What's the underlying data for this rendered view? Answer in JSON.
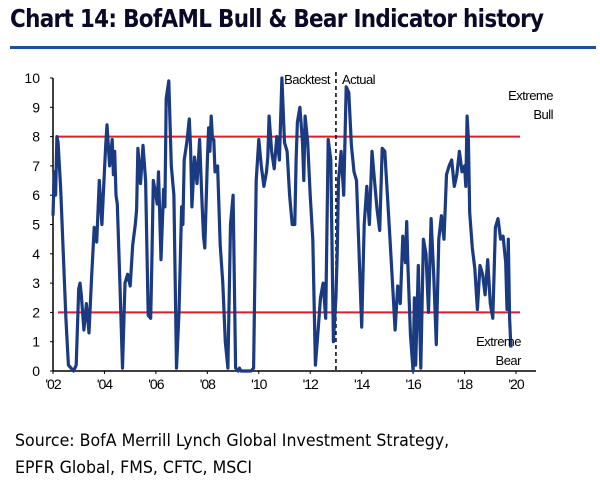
{
  "title": "Chart 14: BofAML Bull & Bear Indicator history",
  "source_lines": [
    "Source: BofA Merrill Lynch Global Investment Strategy,",
    "EPFR Global, FMS, CFTC, MSCI"
  ],
  "colors": {
    "series": "#1a3a82",
    "threshold": "#e01b2a",
    "title_rule": "#1f4e9a"
  },
  "chart_data": {
    "type": "line",
    "title": "Chart 14: BofAML Bull & Bear Indicator history",
    "xlabel": "",
    "ylabel": "",
    "xlim": [
      2002,
      2020
    ],
    "ylim": [
      0,
      10
    ],
    "grid": false,
    "x_tick_labels": [
      "'02",
      "'04",
      "'06",
      "'08",
      "'10",
      "'12",
      "'14",
      "'16",
      "'18",
      "'20"
    ],
    "x_ticks": [
      2002,
      2004,
      2006,
      2008,
      2010,
      2012,
      2014,
      2016,
      2018,
      2020
    ],
    "y_ticks": [
      0,
      1,
      2,
      3,
      4,
      5,
      6,
      7,
      8,
      9,
      10
    ],
    "y_tick_labels": [
      "0",
      "1",
      "2",
      "3",
      "4",
      "5",
      "6",
      "7",
      "8",
      "9",
      "10"
    ],
    "thresholds": [
      {
        "name": "Extreme Bull",
        "value": 8,
        "label_lines": [
          "Extreme",
          "Bull"
        ]
      },
      {
        "name": "Extreme Bear",
        "value": 2,
        "label_lines": [
          "Extreme",
          "Bear"
        ]
      }
    ],
    "divider": {
      "x": 2013.0,
      "left_label": "Backtest",
      "right_label": "Actual",
      "style": "dashed"
    },
    "series": [
      {
        "name": "BofAML Bull & Bear Indicator",
        "x": [
          2002.0,
          2002.05,
          2002.1,
          2002.15,
          2002.2,
          2002.3,
          2002.4,
          2002.5,
          2002.6,
          2002.7,
          2002.8,
          2002.9,
          2003.0,
          2003.05,
          2003.1,
          2003.2,
          2003.3,
          2003.4,
          2003.5,
          2003.6,
          2003.7,
          2003.8,
          2003.9,
          2004.0,
          2004.05,
          2004.1,
          2004.2,
          2004.3,
          2004.35,
          2004.4,
          2004.45,
          2004.5,
          2004.6,
          2004.7,
          2004.8,
          2004.9,
          2005.0,
          2005.1,
          2005.2,
          2005.25,
          2005.3,
          2005.35,
          2005.4,
          2005.5,
          2005.6,
          2005.7,
          2005.8,
          2005.85,
          2005.9,
          2006.0,
          2006.05,
          2006.1,
          2006.2,
          2006.3,
          2006.35,
          2006.4,
          2006.5,
          2006.6,
          2006.7,
          2006.8,
          2006.9,
          2007.0,
          2007.05,
          2007.1,
          2007.2,
          2007.3,
          2007.35,
          2007.4,
          2007.5,
          2007.6,
          2007.7,
          2007.8,
          2007.85,
          2007.9,
          2008.0,
          2008.05,
          2008.1,
          2008.15,
          2008.2,
          2008.25,
          2008.3,
          2008.4,
          2008.5,
          2008.6,
          2008.7,
          2008.8,
          2008.9,
          2009.0,
          2009.1,
          2009.2,
          2009.25,
          2009.3,
          2009.4,
          2009.5,
          2009.6,
          2009.7,
          2009.8,
          2009.9,
          2010.0,
          2010.1,
          2010.2,
          2010.3,
          2010.35,
          2010.4,
          2010.5,
          2010.6,
          2010.7,
          2010.8,
          2010.9,
          2011.0,
          2011.1,
          2011.2,
          2011.3,
          2011.4,
          2011.45,
          2011.5,
          2011.6,
          2011.7,
          2011.75,
          2011.8,
          2011.9,
          2012.0,
          2012.1,
          2012.2,
          2012.3,
          2012.4,
          2012.5,
          2012.6,
          2012.7,
          2012.8,
          2012.9,
          2013.0,
          2013.05,
          2013.1,
          2013.2,
          2013.3,
          2013.4,
          2013.5,
          2013.6,
          2013.7,
          2013.8,
          2013.9,
          2014.0,
          2014.1,
          2014.2,
          2014.3,
          2014.4,
          2014.5,
          2014.6,
          2014.7,
          2014.8,
          2014.9,
          2015.0,
          2015.1,
          2015.2,
          2015.3,
          2015.4,
          2015.5,
          2015.6,
          2015.7,
          2015.75,
          2015.8,
          2015.9,
          2016.0,
          2016.05,
          2016.1,
          2016.2,
          2016.3,
          2016.4,
          2016.5,
          2016.6,
          2016.7,
          2016.8,
          2016.9,
          2017.0,
          2017.1,
          2017.2,
          2017.3,
          2017.4,
          2017.5,
          2017.6,
          2017.7,
          2017.8,
          2017.9,
          2018.0,
          2018.05,
          2018.1,
          2018.15,
          2018.2,
          2018.3,
          2018.4,
          2018.5,
          2018.6,
          2018.7,
          2018.8,
          2018.9,
          2019.0,
          2019.1,
          2019.2,
          2019.3,
          2019.4,
          2019.5,
          2019.6,
          2019.65,
          2019.7,
          2019.75,
          2019.8
        ],
        "y": [
          5.3,
          6.8,
          6.0,
          8.0,
          7.8,
          6.2,
          4.0,
          1.8,
          0.2,
          0.1,
          0.0,
          0.2,
          2.8,
          3.0,
          2.6,
          1.4,
          2.3,
          1.3,
          3.2,
          4.9,
          4.4,
          6.5,
          5.0,
          6.8,
          7.7,
          8.4,
          7.0,
          7.9,
          6.7,
          7.5,
          6.0,
          5.7,
          3.0,
          0.1,
          3.0,
          3.3,
          2.9,
          4.3,
          5.0,
          5.5,
          7.6,
          7.0,
          6.4,
          7.7,
          6.5,
          1.9,
          1.8,
          4.0,
          6.5,
          6.0,
          5.7,
          6.8,
          3.8,
          6.2,
          5.6,
          9.3,
          9.9,
          7.0,
          6.0,
          0.1,
          2.0,
          5.6,
          5.0,
          7.2,
          7.8,
          8.6,
          7.6,
          5.6,
          7.3,
          6.4,
          7.9,
          5.6,
          4.6,
          4.2,
          7.1,
          8.3,
          7.5,
          8.7,
          7.9,
          7.9,
          6.8,
          7.0,
          4.3,
          3.0,
          1.0,
          0.1,
          5.0,
          6.0,
          0.1,
          0.0,
          0.1,
          0.0,
          0.0,
          0.0,
          0.0,
          0.0,
          0.1,
          6.5,
          7.9,
          7.0,
          6.3,
          6.8,
          7.3,
          8.7,
          7.5,
          6.9,
          8.0,
          7.2,
          10.0,
          7.8,
          7.5,
          6.0,
          5.0,
          5.0,
          7.2,
          8.5,
          9.0,
          7.8,
          6.5,
          8.7,
          7.8,
          6.0,
          4.5,
          0.2,
          1.3,
          2.5,
          3.0,
          1.8,
          7.9,
          7.2,
          1.0,
          2.5,
          4.0,
          6.5,
          7.5,
          6.0,
          9.7,
          9.5,
          7.7,
          6.8,
          6.5,
          4.0,
          1.5,
          5.0,
          6.3,
          5.0,
          7.5,
          6.5,
          5.5,
          4.8,
          7.6,
          7.5,
          6.0,
          4.5,
          3.0,
          1.4,
          2.9,
          2.3,
          4.6,
          3.7,
          5.1,
          3.5,
          1.2,
          0.0,
          2.5,
          0.2,
          3.6,
          0.1,
          4.5,
          4.0,
          2.0,
          5.2,
          3.3,
          0.9,
          4.5,
          5.3,
          4.5,
          6.7,
          7.0,
          7.2,
          6.3,
          6.7,
          7.5,
          6.8,
          7.0,
          6.3,
          8.7,
          7.9,
          5.4,
          4.2,
          3.5,
          2.1,
          3.6,
          3.3,
          2.6,
          3.8,
          2.3,
          1.8,
          4.9,
          5.2,
          4.5,
          4.6,
          3.7,
          2.1,
          4.5,
          1.8,
          0.8
        ]
      }
    ]
  }
}
